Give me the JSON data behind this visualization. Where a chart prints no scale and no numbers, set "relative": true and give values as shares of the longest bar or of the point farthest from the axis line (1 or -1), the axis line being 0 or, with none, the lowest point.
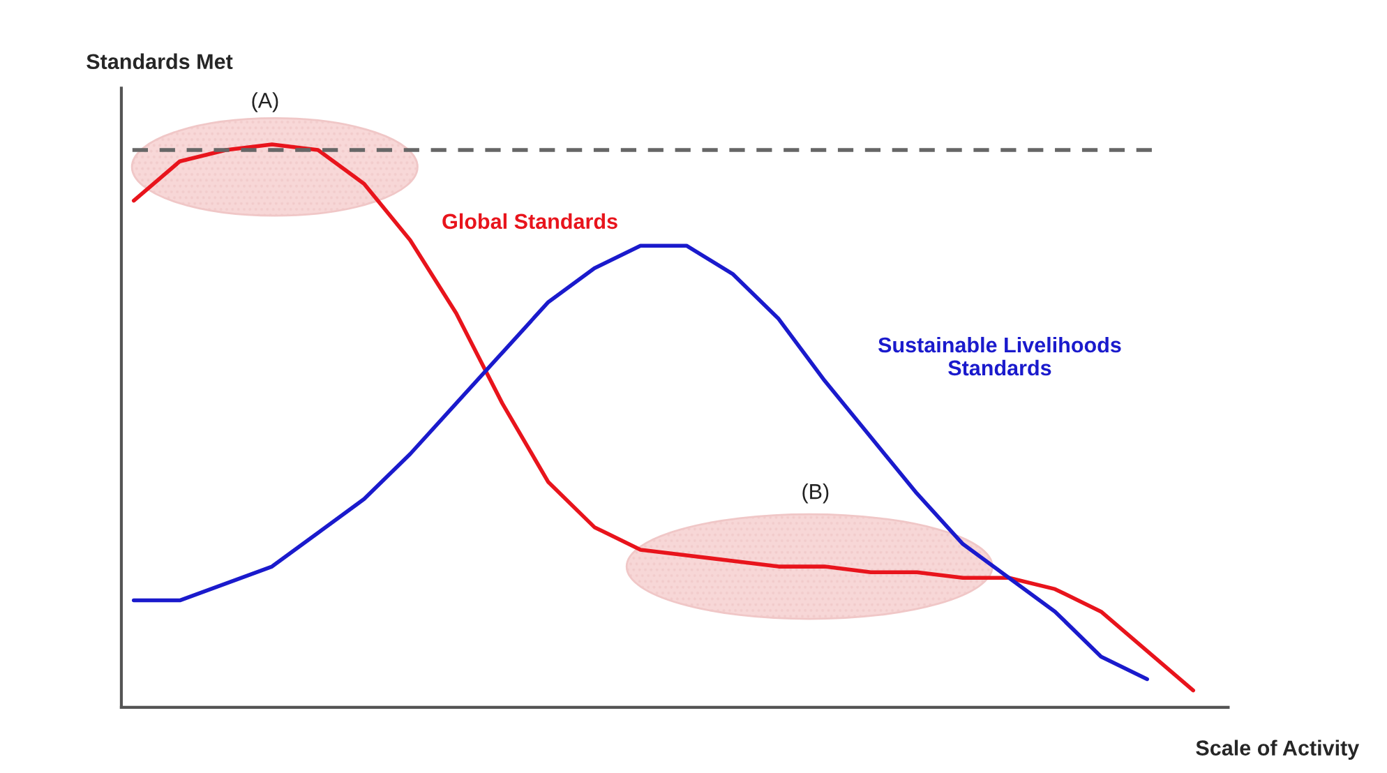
{
  "chart_data": {
    "type": "line",
    "relative": true,
    "xlabel": "Scale of Activity",
    "ylabel": "Standards Met",
    "categories": [
      null,
      null,
      null,
      null,
      null,
      null,
      null,
      null,
      null,
      null,
      null,
      null,
      null,
      null,
      null,
      null,
      null,
      null,
      null,
      null,
      null,
      null,
      null,
      null
    ],
    "series": [
      {
        "name": "Global Standards",
        "color": "#e8141c",
        "values": [
          0.9,
          0.97,
          0.99,
          1.0,
          0.99,
          0.93,
          0.83,
          0.7,
          0.54,
          0.4,
          0.32,
          0.28,
          0.27,
          0.26,
          0.25,
          0.25,
          0.24,
          0.24,
          0.23,
          0.23,
          0.21,
          0.17,
          0.1,
          0.03
        ]
      },
      {
        "name": "Sustainable Livelihoods Standards",
        "color": "#1a1acc",
        "values": [
          0.19,
          0.19,
          0.22,
          0.25,
          0.31,
          0.37,
          0.45,
          0.54,
          0.63,
          0.72,
          0.78,
          0.82,
          0.82,
          0.77,
          0.69,
          0.58,
          0.48,
          0.38,
          0.29,
          0.23,
          0.17,
          0.09,
          0.05,
          null
        ]
      }
    ],
    "ref_lines": [
      {
        "axis": "y",
        "value": 0.99,
        "color": "#666666",
        "line_style": "dashed"
      }
    ],
    "annotations": [
      "(A)",
      "(B)"
    ]
  }
}
